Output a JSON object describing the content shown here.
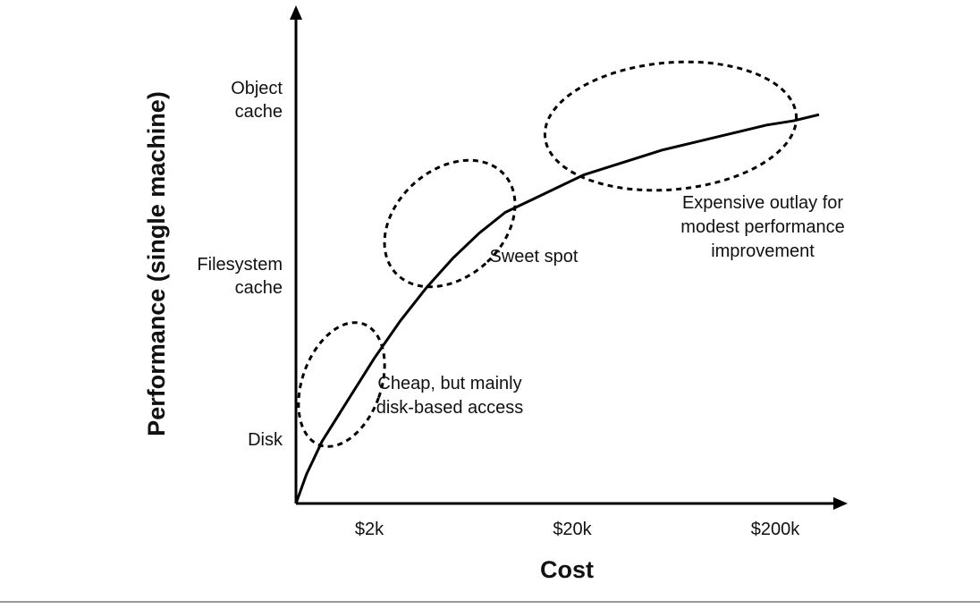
{
  "chart_data": {
    "type": "line",
    "xlabel": "Cost",
    "ylabel": "Performance (single machine)",
    "x_ticks": [
      "$2k",
      "$20k",
      "$200k"
    ],
    "y_ticks": [
      {
        "lines": [
          "Disk"
        ]
      },
      {
        "lines": [
          "Filesystem",
          "cache"
        ]
      },
      {
        "lines": [
          "Object",
          "cache"
        ]
      }
    ],
    "series": [
      {
        "points": [
          [
            0,
            0
          ],
          [
            0.02,
            0.07
          ],
          [
            0.05,
            0.15
          ],
          [
            0.1,
            0.25
          ],
          [
            0.15,
            0.35
          ],
          [
            0.2,
            0.44
          ],
          [
            0.25,
            0.52
          ],
          [
            0.3,
            0.59
          ],
          [
            0.35,
            0.65
          ],
          [
            0.4,
            0.7
          ],
          [
            0.45,
            0.73
          ],
          [
            0.5,
            0.76
          ],
          [
            0.55,
            0.79
          ],
          [
            0.6,
            0.81
          ],
          [
            0.65,
            0.83
          ],
          [
            0.7,
            0.85
          ],
          [
            0.75,
            0.865
          ],
          [
            0.8,
            0.88
          ],
          [
            0.85,
            0.895
          ],
          [
            0.9,
            0.91
          ],
          [
            0.95,
            0.92
          ],
          [
            1.0,
            0.935
          ]
        ]
      }
    ],
    "annotations": [
      {
        "lines": [
          "Cheap, but mainly",
          "disk-based access"
        ]
      },
      {
        "lines": [
          "Sweet spot"
        ]
      },
      {
        "lines": [
          "Expensive outlay for",
          "modest performance",
          "improvement"
        ]
      }
    ],
    "grid": false,
    "legend": "none"
  }
}
